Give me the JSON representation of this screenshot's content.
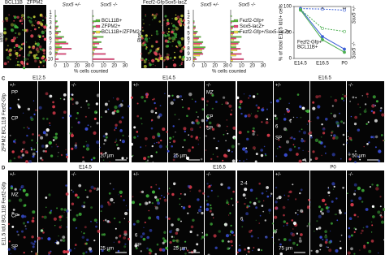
{
  "top_left": {
    "stain_1": "BCL11B",
    "stain_2": "ZFPM2",
    "axis_label": "Bins",
    "bins": [
      1,
      2,
      3,
      4,
      5,
      6,
      7,
      8,
      9,
      10
    ],
    "x_label": "% cells counted",
    "xlim": [
      0,
      30
    ],
    "xticks": [
      0,
      10,
      20,
      30
    ],
    "charts": [
      {
        "title": "Sox5 +/-",
        "series": [
          {
            "name": "BCL11B+",
            "color": "#5cb83a",
            "values": [
              0,
              1,
              2,
              3,
              5,
              8,
              10,
              6,
              2,
              0
            ]
          },
          {
            "name": "ZFPM2+",
            "color": "#e8457a",
            "values": [
              0,
              0,
              1,
              2,
              3,
              6,
              12,
              15,
              10,
              3
            ]
          },
          {
            "name": "BCL11B+/ZFPM2+",
            "color": "#f1dd4a",
            "values": [
              0,
              0,
              0,
              1,
              2,
              3,
              4,
              3,
              1,
              0
            ]
          }
        ]
      },
      {
        "title": "Sox5 -/-",
        "series": [
          {
            "name": "BCL11B+",
            "color": "#5cb83a",
            "values": [
              0,
              1,
              3,
              6,
              8,
              10,
              8,
              4,
              1,
              0
            ]
          },
          {
            "name": "ZFPM2+",
            "color": "#e8457a",
            "values": [
              0,
              0,
              1,
              1,
              2,
              4,
              6,
              9,
              12,
              20
            ]
          },
          {
            "name": "BCL11B+/ZFPM2+",
            "color": "#f1dd4a",
            "values": [
              0,
              0,
              0,
              0,
              1,
              1,
              2,
              2,
              1,
              0
            ]
          }
        ]
      }
    ]
  },
  "top_middle": {
    "stain_1": "Fezf2-Gfp",
    "stain_2": "Sox5-lacZ",
    "axis_label": "Bins",
    "bins": [
      1,
      2,
      3,
      4,
      5,
      6,
      7,
      8,
      9,
      10
    ],
    "x_label": "% cells counted",
    "xlim": [
      0,
      30
    ],
    "xticks": [
      0,
      10,
      20,
      30
    ],
    "charts": [
      {
        "title": "Sox5 +/-",
        "series": [
          {
            "name": "Fezf2-Gfp+",
            "color": "#5cb83a",
            "values": [
              0,
              0,
              1,
              2,
              4,
              7,
              9,
              11,
              8,
              2
            ]
          },
          {
            "name": "Sox5-lacZ+",
            "color": "#e8457a",
            "values": [
              0,
              0,
              1,
              2,
              3,
              5,
              8,
              10,
              9,
              3
            ]
          },
          {
            "name": "Fezf2-Gfp+/Sox5-lacZ+",
            "color": "#f1dd4a",
            "values": [
              0,
              0,
              0,
              1,
              2,
              4,
              6,
              8,
              6,
              1
            ]
          }
        ]
      },
      {
        "title": "Sox5 -/-",
        "series": [
          {
            "name": "Fezf2-Gfp+",
            "color": "#5cb83a",
            "values": [
              0,
              1,
              3,
              6,
              9,
              10,
              8,
              5,
              2,
              1
            ]
          },
          {
            "name": "Sox5-lacZ+",
            "color": "#e8457a",
            "values": [
              0,
              0,
              1,
              2,
              3,
              5,
              7,
              9,
              10,
              12
            ]
          },
          {
            "name": "Fezf2-Gfp+/Sox5-lacZ+",
            "color": "#f1dd4a",
            "values": [
              0,
              0,
              0,
              1,
              2,
              3,
              5,
              6,
              5,
              2
            ]
          }
        ]
      }
    ]
  },
  "line_chart": {
    "y_label": "% of total E11.5 IdU+ cells",
    "categories": [
      "E14.5",
      "E16.5",
      "P0"
    ],
    "ylim": [
      0,
      100
    ],
    "yticks": [
      0,
      50,
      100
    ],
    "group_labels": [
      "Sox5 +/-",
      "Sox5 -/-"
    ],
    "marker_labels": [
      "Fezf2-Gfp+",
      "BCL11B+"
    ],
    "significance": [
      "*",
      "**"
    ],
    "series": [
      {
        "color": "#3b5fd6",
        "dash": true,
        "values": [
          96,
          95,
          93
        ]
      },
      {
        "color": "#3b5fd6",
        "dash": false,
        "values": [
          95,
          42,
          18
        ]
      },
      {
        "color": "#4caf50",
        "dash": true,
        "values": [
          94,
          58,
          52
        ]
      },
      {
        "color": "#4caf50",
        "dash": false,
        "values": [
          93,
          36,
          12
        ]
      }
    ]
  },
  "panel_c": {
    "letter": "C",
    "stain_label": "ZFPM2 BCL11B Fezf2-Gfp",
    "stages": [
      "E12.5",
      "E14.5",
      "E16.5"
    ],
    "genotypes": [
      "+/-",
      "-/-",
      "+/-",
      "-/-",
      "+/-",
      "-/-"
    ],
    "zones": [
      "PP",
      "CP",
      "MZ",
      "CP",
      "SP",
      "6",
      "SP"
    ],
    "scale_bars": [
      "20 µm",
      "25 µm",
      "50 µm"
    ]
  },
  "panel_d": {
    "letter": "D",
    "stain_label": "E11.5 IdU BCL11B Fezf2-Gfp",
    "stages": [
      "E14.5",
      "E16.5",
      "P0"
    ],
    "genotypes": [
      "+/-",
      "-/-",
      "+/-",
      "-/-",
      "+/-",
      "-/-"
    ],
    "zones": [
      "MZ",
      "CP",
      "SP",
      "6",
      "SP",
      "2-4",
      "6"
    ],
    "scale_bars": [
      "25 µm",
      "25 µm",
      "75 µm"
    ]
  }
}
